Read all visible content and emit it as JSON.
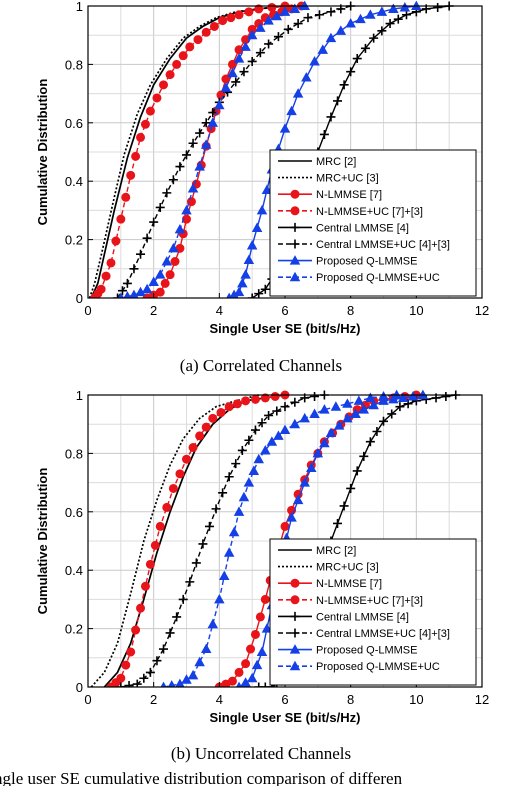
{
  "chart_data": [
    {
      "type": "line",
      "subcaption": "(a) Correlated Channels",
      "xlabel": "Single User SE (bit/s/Hz)",
      "ylabel": "Cumulative Distribution",
      "xlim": [
        0,
        12
      ],
      "ylim": [
        0,
        1
      ],
      "xticks": [
        0,
        2,
        4,
        6,
        8,
        10,
        12
      ],
      "yticks": [
        0,
        0.2,
        0.4,
        0.6,
        0.8,
        1
      ],
      "grid": true,
      "legend_position": "bottom-right",
      "series": [
        {
          "name": "MRC [2]",
          "color": "#000000",
          "dash": "solid",
          "marker": "none",
          "points": [
            [
              0.1,
              0
            ],
            [
              0.3,
              0.05
            ],
            [
              0.5,
              0.15
            ],
            [
              0.8,
              0.3
            ],
            [
              1.2,
              0.48
            ],
            [
              1.6,
              0.62
            ],
            [
              2.0,
              0.73
            ],
            [
              2.5,
              0.82
            ],
            [
              3.0,
              0.89
            ],
            [
              3.5,
              0.93
            ],
            [
              4.0,
              0.96
            ],
            [
              4.6,
              0.98
            ],
            [
              5.2,
              0.99
            ],
            [
              6.0,
              1.0
            ]
          ]
        },
        {
          "name": "MRC+UC [3]",
          "color": "#000000",
          "dash": "dot",
          "marker": "none",
          "points": [
            [
              0.05,
              0
            ],
            [
              0.2,
              0.05
            ],
            [
              0.45,
              0.17
            ],
            [
              0.75,
              0.32
            ],
            [
              1.1,
              0.49
            ],
            [
              1.5,
              0.63
            ],
            [
              1.9,
              0.73
            ],
            [
              2.4,
              0.82
            ],
            [
              2.9,
              0.89
            ],
            [
              3.4,
              0.93
            ],
            [
              3.9,
              0.96
            ],
            [
              4.5,
              0.98
            ],
            [
              5.2,
              0.99
            ],
            [
              6.0,
              1.0
            ]
          ]
        },
        {
          "name": "N-LMMSE [7]",
          "color": "#e8141a",
          "dash": "solid",
          "marker": "circle",
          "points": [
            [
              1.8,
              0
            ],
            [
              2.2,
              0.02
            ],
            [
              2.5,
              0.08
            ],
            [
              2.8,
              0.17
            ],
            [
              3.0,
              0.27
            ],
            [
              3.3,
              0.39
            ],
            [
              3.6,
              0.52
            ],
            [
              3.9,
              0.64
            ],
            [
              4.2,
              0.75
            ],
            [
              4.6,
              0.85
            ],
            [
              5.0,
              0.92
            ],
            [
              5.4,
              0.96
            ],
            [
              5.9,
              0.98
            ],
            [
              6.5,
              1.0
            ]
          ]
        },
        {
          "name": "N-LMMSE+UC [7]+[3]",
          "color": "#e8141a",
          "dash": "dash",
          "marker": "circle",
          "points": [
            [
              0.2,
              0
            ],
            [
              0.4,
              0.03
            ],
            [
              0.7,
              0.12
            ],
            [
              1.0,
              0.27
            ],
            [
              1.3,
              0.42
            ],
            [
              1.6,
              0.55
            ],
            [
              1.9,
              0.64
            ],
            [
              2.3,
              0.73
            ],
            [
              2.7,
              0.8
            ],
            [
              3.1,
              0.86
            ],
            [
              3.6,
              0.91
            ],
            [
              4.1,
              0.95
            ],
            [
              4.6,
              0.97
            ],
            [
              5.2,
              0.99
            ],
            [
              6.0,
              1.0
            ]
          ]
        },
        {
          "name": "Central LMMSE [4]",
          "color": "#000000",
          "dash": "solid",
          "marker": "plus",
          "points": [
            [
              5.0,
              0
            ],
            [
              5.4,
              0.03
            ],
            [
              5.8,
              0.1
            ],
            [
              6.2,
              0.22
            ],
            [
              6.6,
              0.36
            ],
            [
              7.0,
              0.5
            ],
            [
              7.4,
              0.62
            ],
            [
              7.8,
              0.73
            ],
            [
              8.2,
              0.82
            ],
            [
              8.7,
              0.89
            ],
            [
              9.2,
              0.94
            ],
            [
              9.7,
              0.97
            ],
            [
              10.3,
              0.99
            ],
            [
              11.0,
              1.0
            ]
          ]
        },
        {
          "name": "Central LMMSE+UC [4]+[3]",
          "color": "#000000",
          "dash": "dash",
          "marker": "plus",
          "points": [
            [
              0.9,
              0
            ],
            [
              1.2,
              0.05
            ],
            [
              1.6,
              0.15
            ],
            [
              2.0,
              0.26
            ],
            [
              2.4,
              0.36
            ],
            [
              2.8,
              0.45
            ],
            [
              3.2,
              0.53
            ],
            [
              3.6,
              0.6
            ],
            [
              4.0,
              0.67
            ],
            [
              4.5,
              0.74
            ],
            [
              5.0,
              0.81
            ],
            [
              5.5,
              0.87
            ],
            [
              6.1,
              0.92
            ],
            [
              6.7,
              0.96
            ],
            [
              7.4,
              0.98
            ],
            [
              8.0,
              1.0
            ]
          ]
        },
        {
          "name": "Proposed Q-LMMSE",
          "color": "#1440e6",
          "dash": "solid",
          "marker": "triangle",
          "points": [
            [
              4.3,
              0
            ],
            [
              4.6,
              0.02
            ],
            [
              4.8,
              0.08
            ],
            [
              5.0,
              0.18
            ],
            [
              5.3,
              0.3
            ],
            [
              5.6,
              0.44
            ],
            [
              6.0,
              0.58
            ],
            [
              6.4,
              0.7
            ],
            [
              6.9,
              0.81
            ],
            [
              7.4,
              0.89
            ],
            [
              8.0,
              0.94
            ],
            [
              8.6,
              0.97
            ],
            [
              9.3,
              0.99
            ],
            [
              10.0,
              1.0
            ]
          ]
        },
        {
          "name": "Proposed Q-LMMSE+UC",
          "color": "#1440e6",
          "dash": "dash",
          "marker": "triangle",
          "points": [
            [
              1.0,
              0
            ],
            [
              1.4,
              0.01
            ],
            [
              1.8,
              0.03
            ],
            [
              2.2,
              0.08
            ],
            [
              2.6,
              0.17
            ],
            [
              3.0,
              0.3
            ],
            [
              3.4,
              0.45
            ],
            [
              3.8,
              0.6
            ],
            [
              4.2,
              0.72
            ],
            [
              4.6,
              0.82
            ],
            [
              5.0,
              0.9
            ],
            [
              5.5,
              0.95
            ],
            [
              6.0,
              0.98
            ],
            [
              6.6,
              1.0
            ]
          ]
        }
      ]
    },
    {
      "type": "line",
      "subcaption": "(b) Uncorrelated Channels",
      "xlabel": "Single User SE (bit/s/Hz)",
      "ylabel": "Cumulative Distribution",
      "xlim": [
        0,
        12
      ],
      "ylim": [
        0,
        1
      ],
      "xticks": [
        0,
        2,
        4,
        6,
        8,
        10,
        12
      ],
      "yticks": [
        0,
        0.2,
        0.4,
        0.6,
        0.8,
        1
      ],
      "grid": true,
      "legend_position": "bottom-right",
      "series": [
        {
          "name": "MRC [2]",
          "color": "#000000",
          "dash": "solid",
          "marker": "none",
          "points": [
            [
              0.5,
              0
            ],
            [
              0.9,
              0.05
            ],
            [
              1.3,
              0.15
            ],
            [
              1.7,
              0.3
            ],
            [
              2.1,
              0.46
            ],
            [
              2.5,
              0.6
            ],
            [
              2.9,
              0.72
            ],
            [
              3.3,
              0.82
            ],
            [
              3.8,
              0.9
            ],
            [
              4.3,
              0.95
            ],
            [
              4.8,
              0.98
            ],
            [
              5.4,
              0.99
            ],
            [
              6.0,
              1.0
            ]
          ]
        },
        {
          "name": "MRC+UC [3]",
          "color": "#000000",
          "dash": "dot",
          "marker": "none",
          "points": [
            [
              0.1,
              0
            ],
            [
              0.5,
              0.05
            ],
            [
              0.9,
              0.15
            ],
            [
              1.3,
              0.32
            ],
            [
              1.7,
              0.5
            ],
            [
              2.1,
              0.64
            ],
            [
              2.5,
              0.76
            ],
            [
              2.9,
              0.85
            ],
            [
              3.4,
              0.92
            ],
            [
              3.9,
              0.96
            ],
            [
              4.5,
              0.98
            ],
            [
              5.2,
              1.0
            ]
          ]
        },
        {
          "name": "N-LMMSE [7]",
          "color": "#e8141a",
          "dash": "solid",
          "marker": "circle",
          "points": [
            [
              4.0,
              0
            ],
            [
              4.4,
              0.02
            ],
            [
              4.8,
              0.08
            ],
            [
              5.1,
              0.18
            ],
            [
              5.4,
              0.3
            ],
            [
              5.7,
              0.43
            ],
            [
              6.0,
              0.55
            ],
            [
              6.4,
              0.66
            ],
            [
              6.8,
              0.76
            ],
            [
              7.2,
              0.84
            ],
            [
              7.7,
              0.9
            ],
            [
              8.2,
              0.95
            ],
            [
              8.7,
              0.98
            ],
            [
              9.3,
              0.99
            ],
            [
              10.0,
              1.0
            ]
          ]
        },
        {
          "name": "N-LMMSE+UC [7]+[3]",
          "color": "#e8141a",
          "dash": "dash",
          "marker": "circle",
          "points": [
            [
              0.7,
              0
            ],
            [
              1.0,
              0.03
            ],
            [
              1.3,
              0.12
            ],
            [
              1.6,
              0.27
            ],
            [
              1.9,
              0.42
            ],
            [
              2.2,
              0.55
            ],
            [
              2.6,
              0.68
            ],
            [
              3.0,
              0.78
            ],
            [
              3.4,
              0.86
            ],
            [
              3.8,
              0.92
            ],
            [
              4.3,
              0.96
            ],
            [
              4.8,
              0.98
            ],
            [
              5.4,
              0.99
            ],
            [
              6.0,
              1.0
            ]
          ]
        },
        {
          "name": "Central LMMSE [4]",
          "color": "#000000",
          "dash": "solid",
          "marker": "plus",
          "points": [
            [
              5.2,
              0
            ],
            [
              5.6,
              0.0
            ],
            [
              5.9,
              0.02
            ],
            [
              6.2,
              0.1
            ],
            [
              6.6,
              0.25
            ],
            [
              7.0,
              0.38
            ],
            [
              7.4,
              0.5
            ],
            [
              7.8,
              0.62
            ],
            [
              8.2,
              0.74
            ],
            [
              8.6,
              0.84
            ],
            [
              9.0,
              0.91
            ],
            [
              9.5,
              0.96
            ],
            [
              10.0,
              0.98
            ],
            [
              10.6,
              0.99
            ],
            [
              11.2,
              1.0
            ]
          ]
        },
        {
          "name": "Central LMMSE+UC [4]+[3]",
          "color": "#000000",
          "dash": "dash",
          "marker": "plus",
          "points": [
            [
              1.0,
              0
            ],
            [
              1.5,
              0.01
            ],
            [
              1.9,
              0.05
            ],
            [
              2.3,
              0.13
            ],
            [
              2.7,
              0.24
            ],
            [
              3.1,
              0.36
            ],
            [
              3.5,
              0.49
            ],
            [
              3.9,
              0.61
            ],
            [
              4.3,
              0.72
            ],
            [
              4.7,
              0.81
            ],
            [
              5.1,
              0.88
            ],
            [
              5.5,
              0.93
            ],
            [
              6.0,
              0.96
            ],
            [
              6.6,
              0.99
            ],
            [
              7.2,
              1.0
            ]
          ]
        },
        {
          "name": "Proposed Q-LMMSE",
          "color": "#1440e6",
          "dash": "solid",
          "marker": "triangle",
          "points": [
            [
              4.6,
              0
            ],
            [
              5.0,
              0.03
            ],
            [
              5.3,
              0.12
            ],
            [
              5.6,
              0.28
            ],
            [
              5.9,
              0.44
            ],
            [
              6.2,
              0.58
            ],
            [
              6.6,
              0.7
            ],
            [
              7.0,
              0.8
            ],
            [
              7.4,
              0.87
            ],
            [
              7.9,
              0.92
            ],
            [
              8.4,
              0.95
            ],
            [
              9.0,
              0.98
            ],
            [
              9.6,
              0.99
            ],
            [
              10.2,
              1.0
            ]
          ]
        },
        {
          "name": "Proposed Q-LMMSE+UC",
          "color": "#1440e6",
          "dash": "dash",
          "marker": "triangle",
          "points": [
            [
              2.3,
              0
            ],
            [
              2.8,
              0.01
            ],
            [
              3.2,
              0.04
            ],
            [
              3.6,
              0.13
            ],
            [
              4.0,
              0.3
            ],
            [
              4.3,
              0.46
            ],
            [
              4.6,
              0.6
            ],
            [
              4.9,
              0.7
            ],
            [
              5.2,
              0.78
            ],
            [
              5.6,
              0.84
            ],
            [
              6.0,
              0.88
            ],
            [
              6.6,
              0.92
            ],
            [
              7.2,
              0.95
            ],
            [
              7.9,
              0.97
            ],
            [
              8.6,
              0.99
            ],
            [
              9.4,
              1.0
            ]
          ]
        }
      ]
    }
  ],
  "caption": "ngle user SE cumulative distribution comparison of differen"
}
